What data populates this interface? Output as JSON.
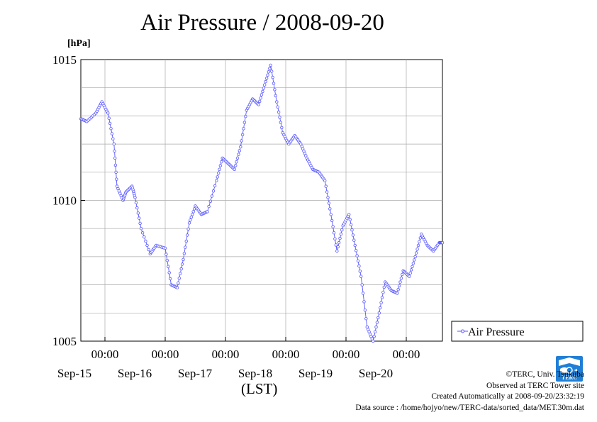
{
  "page": {
    "title": "Air Pressure / 2008-09-20",
    "xlabel": "(LST)",
    "credits": [
      "©TERC, Univ. Tsukuba",
      "Observed at TERC Tower site",
      "Created Automatically at 2008-09-20/23:32:19",
      "Data source : /home/hojyo/new/TERC-data/sorted_data/MET.30m.dat"
    ],
    "logo_text": "TERC"
  },
  "colors": {
    "series": "#5555ff",
    "grid": "#aaaaaa",
    "axis": "#000000",
    "logo": "#1f7fd6"
  },
  "chart_data": {
    "type": "line",
    "title": "Air Pressure / 2008-09-20",
    "xlabel": "(LST)",
    "ylabel": "[hPa]",
    "ylim": [
      1005,
      1015
    ],
    "yticks": [
      1005,
      1010,
      1015
    ],
    "xlim_days": [
      14.6,
      20.6
    ],
    "xtick_time_label": "00:00",
    "xticks": [
      {
        "date": "Sep-15",
        "day": 15
      },
      {
        "date": "Sep-16",
        "day": 16
      },
      {
        "date": "Sep-17",
        "day": 17
      },
      {
        "date": "Sep-18",
        "day": 18
      },
      {
        "date": "Sep-19",
        "day": 19
      },
      {
        "date": "Sep-20",
        "day": 20
      }
    ],
    "grid": true,
    "legend": "right",
    "series": [
      {
        "name": "Air Pressure",
        "x_days": [
          14.6,
          14.7,
          14.85,
          14.95,
          15.05,
          15.15,
          15.2,
          15.3,
          15.35,
          15.45,
          15.5,
          15.6,
          15.75,
          15.85,
          16.0,
          16.1,
          16.2,
          16.3,
          16.4,
          16.5,
          16.6,
          16.7,
          16.85,
          16.95,
          17.05,
          17.15,
          17.25,
          17.35,
          17.45,
          17.55,
          17.65,
          17.75,
          17.85,
          17.95,
          18.05,
          18.15,
          18.25,
          18.35,
          18.45,
          18.55,
          18.65,
          18.75,
          18.85,
          18.95,
          19.05,
          19.15,
          19.25,
          19.35,
          19.45,
          19.55,
          19.65,
          19.75,
          19.85,
          19.95,
          20.05,
          20.15,
          20.25,
          20.35,
          20.45,
          20.55,
          20.6
        ],
        "values": [
          1012.9,
          1012.8,
          1013.1,
          1013.5,
          1013.1,
          1012.0,
          1010.5,
          1010.0,
          1010.3,
          1010.5,
          1010.1,
          1009.0,
          1008.1,
          1008.4,
          1008.3,
          1007.0,
          1006.9,
          1007.9,
          1009.2,
          1009.8,
          1009.5,
          1009.6,
          1010.7,
          1011.5,
          1011.3,
          1011.1,
          1011.9,
          1013.2,
          1013.6,
          1013.4,
          1014.1,
          1014.8,
          1013.5,
          1012.4,
          1012.0,
          1012.3,
          1012.0,
          1011.5,
          1011.1,
          1011.0,
          1010.7,
          1009.5,
          1008.2,
          1009.1,
          1009.5,
          1008.4,
          1007.3,
          1005.5,
          1005.0,
          1006.0,
          1007.1,
          1006.8,
          1006.7,
          1007.5,
          1007.3,
          1008.0,
          1008.8,
          1008.4,
          1008.2,
          1008.5,
          1008.5
        ]
      }
    ]
  }
}
